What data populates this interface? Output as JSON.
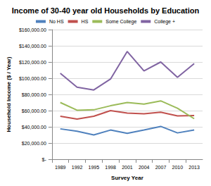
{
  "chart_data": {
    "type": "line",
    "title": "Income of 30-40 year old Households by Education",
    "x_label": "Survey Year",
    "y_label": "Household Income ($ / Year)",
    "categories": [
      "1989",
      "1992",
      "1995",
      "1998",
      "2001",
      "2004",
      "2007",
      "2010",
      "2013"
    ],
    "series": [
      {
        "name": "No HS",
        "color": "#4f81bd",
        "values": [
          37500,
          34500,
          30000,
          36000,
          32000,
          36000,
          40500,
          32500,
          36000
        ]
      },
      {
        "name": "HS",
        "color": "#c0504d",
        "values": [
          53000,
          49500,
          53000,
          60000,
          57000,
          56000,
          58000,
          53500,
          54000
        ]
      },
      {
        "name": "Some College",
        "color": "#9bbb59",
        "values": [
          70000,
          60500,
          61000,
          66000,
          70000,
          68000,
          72000,
          63000,
          50000
        ]
      },
      {
        "name": "College +",
        "color": "#8064a2",
        "values": [
          106000,
          89000,
          85500,
          99000,
          133000,
          109000,
          120000,
          101000,
          118000
        ]
      }
    ],
    "ylim": [
      0,
      160000
    ],
    "yticks": [
      {
        "value": 0,
        "label": "$-"
      },
      {
        "value": 20000,
        "label": "$20,000.00"
      },
      {
        "value": 40000,
        "label": "$40,000.00"
      },
      {
        "value": 60000,
        "label": "$60,000.00"
      },
      {
        "value": 80000,
        "label": "$80,000.00"
      },
      {
        "value": 100000,
        "label": "$100,000.00"
      },
      {
        "value": 120000,
        "label": "$120,000.00"
      },
      {
        "value": 140000,
        "label": "$140,000.00"
      },
      {
        "value": 160000,
        "label": "$160,000.00"
      }
    ],
    "grid": true,
    "legend": "top"
  }
}
